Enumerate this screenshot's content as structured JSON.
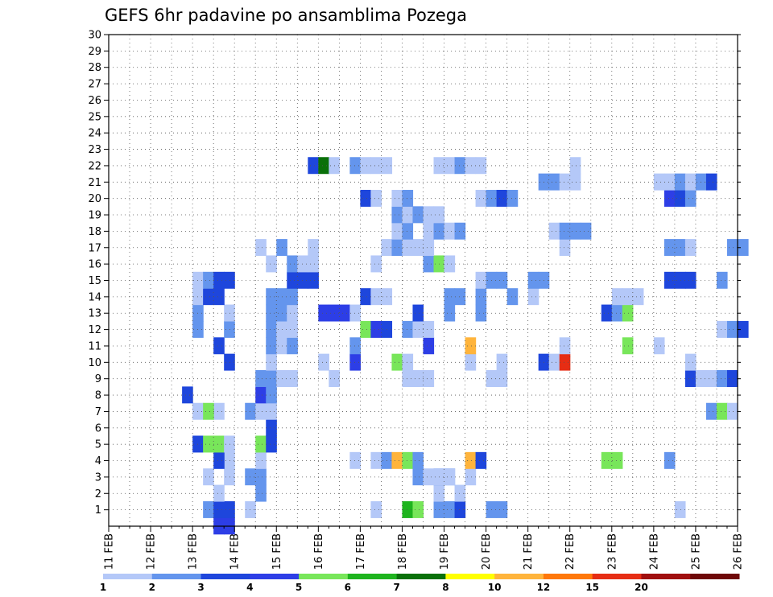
{
  "chart_data": {
    "type": "heatmap",
    "title": "GEFS 6hr padavine po ansamblima Pozega",
    "x_tick_labels": [
      "11 FEB",
      "12 FEB",
      "13 FEB",
      "14 FEB",
      "15 FEB",
      "16 FEB",
      "17 FEB",
      "18 FEB",
      "19 FEB",
      "20 FEB",
      "21 FEB",
      "22 FEB",
      "23 FEB",
      "24 FEB",
      "25 FEB",
      "26 FEB"
    ],
    "x_range": [
      0,
      60
    ],
    "y_tick_labels": [
      1,
      2,
      3,
      4,
      5,
      6,
      7,
      8,
      9,
      10,
      11,
      12,
      13,
      14,
      15,
      16,
      17,
      18,
      19,
      20,
      21,
      22,
      23,
      24,
      25,
      26,
      27,
      28,
      29,
      30
    ],
    "y_range": [
      0,
      30
    ],
    "grid": true,
    "legend_placement": "bottom",
    "legend_values": [
      "1",
      "2",
      "3",
      "4",
      "5",
      "6",
      "7",
      "8",
      "10",
      "12",
      "15",
      "20"
    ],
    "level_colors": [
      "#b4c8f8",
      "#6495ed",
      "#1e46dc",
      "#2d3ee6",
      "#78e65a",
      "#1eb41e",
      "#0a700a",
      "#ffff00",
      "#ffb43c",
      "#ff780a",
      "#e62d14",
      "#a00f0f",
      "#6e0808"
    ],
    "cell_note": "cells: [step, member, level]; step = 6-hour interval since 11 FEB 00Z",
    "cells": [
      [
        10,
        0,
        4
      ],
      [
        11,
        0,
        4
      ],
      [
        9,
        1,
        2
      ],
      [
        10,
        1,
        3
      ],
      [
        11,
        1,
        3
      ],
      [
        13,
        1,
        1
      ],
      [
        25,
        1,
        1
      ],
      [
        36,
        1,
        2
      ],
      [
        37,
        1,
        2
      ],
      [
        28,
        1,
        6
      ],
      [
        29,
        1,
        5
      ],
      [
        31,
        1,
        2
      ],
      [
        32,
        1,
        2
      ],
      [
        33,
        1,
        3
      ],
      [
        54,
        1,
        1
      ],
      [
        10,
        2,
        1
      ],
      [
        14,
        2,
        2
      ],
      [
        31,
        2,
        1
      ],
      [
        33,
        2,
        1
      ],
      [
        11,
        3,
        1
      ],
      [
        13,
        3,
        2
      ],
      [
        14,
        3,
        2
      ],
      [
        31,
        3,
        2
      ],
      [
        32,
        3,
        2
      ],
      [
        34,
        3,
        1
      ],
      [
        9,
        3,
        1
      ],
      [
        29,
        3,
        2
      ],
      [
        30,
        3,
        1
      ],
      [
        31,
        3,
        1
      ],
      [
        32,
        3,
        1
      ],
      [
        11,
        4,
        1
      ],
      [
        10,
        4,
        3
      ],
      [
        14,
        4,
        1
      ],
      [
        23,
        4,
        1
      ],
      [
        25,
        4,
        1
      ],
      [
        26,
        4,
        2
      ],
      [
        27,
        4,
        9
      ],
      [
        28,
        4,
        5
      ],
      [
        29,
        4,
        2
      ],
      [
        34,
        4,
        9
      ],
      [
        35,
        4,
        3
      ],
      [
        47,
        4,
        5
      ],
      [
        48,
        4,
        5
      ],
      [
        53,
        4,
        2
      ],
      [
        8,
        5,
        3
      ],
      [
        9,
        5,
        5
      ],
      [
        10,
        5,
        5
      ],
      [
        11,
        5,
        1
      ],
      [
        14,
        5,
        5
      ],
      [
        15,
        5,
        3
      ],
      [
        15,
        6,
        3
      ],
      [
        8,
        7,
        1
      ],
      [
        10,
        7,
        1
      ],
      [
        13,
        7,
        2
      ],
      [
        14,
        7,
        1
      ],
      [
        15,
        7,
        1
      ],
      [
        9,
        7,
        5
      ],
      [
        57,
        7,
        2
      ],
      [
        58,
        7,
        5
      ],
      [
        59,
        7,
        1
      ],
      [
        7,
        8,
        3
      ],
      [
        14,
        8,
        4
      ],
      [
        15,
        8,
        2
      ],
      [
        14,
        9,
        2
      ],
      [
        15,
        9,
        2
      ],
      [
        16,
        9,
        1
      ],
      [
        17,
        9,
        1
      ],
      [
        21,
        9,
        1
      ],
      [
        28,
        9,
        1
      ],
      [
        29,
        9,
        1
      ],
      [
        30,
        9,
        1
      ],
      [
        36,
        9,
        1
      ],
      [
        37,
        9,
        1
      ],
      [
        55,
        9,
        3
      ],
      [
        56,
        9,
        1
      ],
      [
        57,
        9,
        1
      ],
      [
        58,
        9,
        2
      ],
      [
        59,
        9,
        3
      ],
      [
        11,
        10,
        3
      ],
      [
        15,
        10,
        1
      ],
      [
        20,
        10,
        1
      ],
      [
        23,
        10,
        4
      ],
      [
        27,
        10,
        5
      ],
      [
        28,
        10,
        1
      ],
      [
        34,
        10,
        1
      ],
      [
        37,
        10,
        1
      ],
      [
        41,
        10,
        3
      ],
      [
        42,
        10,
        1
      ],
      [
        55,
        10,
        1
      ],
      [
        43,
        10,
        11
      ],
      [
        10,
        11,
        3
      ],
      [
        15,
        11,
        2
      ],
      [
        16,
        11,
        1
      ],
      [
        17,
        11,
        2
      ],
      [
        23,
        11,
        2
      ],
      [
        30,
        11,
        4
      ],
      [
        34,
        11,
        9
      ],
      [
        43,
        11,
        1
      ],
      [
        49,
        11,
        5
      ],
      [
        52,
        11,
        1
      ],
      [
        8,
        12,
        2
      ],
      [
        11,
        12,
        2
      ],
      [
        15,
        12,
        2
      ],
      [
        16,
        12,
        1
      ],
      [
        17,
        12,
        1
      ],
      [
        24,
        12,
        5
      ],
      [
        25,
        12,
        4
      ],
      [
        26,
        12,
        3
      ],
      [
        28,
        12,
        2
      ],
      [
        29,
        12,
        1
      ],
      [
        30,
        12,
        1
      ],
      [
        58,
        12,
        1
      ],
      [
        59,
        12,
        2
      ],
      [
        60,
        12,
        3
      ],
      [
        8,
        13,
        2
      ],
      [
        11,
        13,
        1
      ],
      [
        15,
        13,
        2
      ],
      [
        16,
        13,
        2
      ],
      [
        17,
        13,
        1
      ],
      [
        20,
        13,
        4
      ],
      [
        21,
        13,
        4
      ],
      [
        22,
        13,
        4
      ],
      [
        23,
        13,
        1
      ],
      [
        29,
        13,
        3
      ],
      [
        32,
        13,
        2
      ],
      [
        35,
        13,
        2
      ],
      [
        47,
        13,
        3
      ],
      [
        48,
        13,
        2
      ],
      [
        49,
        13,
        5
      ],
      [
        8,
        14,
        1
      ],
      [
        9,
        14,
        3
      ],
      [
        10,
        14,
        3
      ],
      [
        15,
        14,
        2
      ],
      [
        16,
        14,
        2
      ],
      [
        17,
        14,
        2
      ],
      [
        24,
        14,
        3
      ],
      [
        25,
        14,
        1
      ],
      [
        26,
        14,
        1
      ],
      [
        32,
        14,
        2
      ],
      [
        33,
        14,
        2
      ],
      [
        35,
        14,
        2
      ],
      [
        38,
        14,
        2
      ],
      [
        40,
        14,
        1
      ],
      [
        48,
        14,
        1
      ],
      [
        49,
        14,
        1
      ],
      [
        50,
        14,
        1
      ],
      [
        8,
        15,
        1
      ],
      [
        9,
        15,
        2
      ],
      [
        10,
        15,
        3
      ],
      [
        11,
        15,
        3
      ],
      [
        17,
        15,
        3
      ],
      [
        18,
        15,
        3
      ],
      [
        19,
        15,
        3
      ],
      [
        35,
        15,
        1
      ],
      [
        36,
        15,
        2
      ],
      [
        37,
        15,
        2
      ],
      [
        40,
        15,
        2
      ],
      [
        41,
        15,
        2
      ],
      [
        53,
        15,
        3
      ],
      [
        54,
        15,
        3
      ],
      [
        55,
        15,
        3
      ],
      [
        58,
        15,
        2
      ],
      [
        15,
        16,
        1
      ],
      [
        17,
        16,
        2
      ],
      [
        18,
        16,
        1
      ],
      [
        19,
        16,
        1
      ],
      [
        25,
        16,
        1
      ],
      [
        30,
        16,
        2
      ],
      [
        31,
        16,
        5
      ],
      [
        32,
        16,
        1
      ],
      [
        14,
        17,
        1
      ],
      [
        16,
        17,
        2
      ],
      [
        19,
        17,
        1
      ],
      [
        26,
        17,
        1
      ],
      [
        27,
        17,
        2
      ],
      [
        28,
        17,
        1
      ],
      [
        29,
        17,
        1
      ],
      [
        30,
        17,
        1
      ],
      [
        43,
        17,
        1
      ],
      [
        53,
        17,
        2
      ],
      [
        54,
        17,
        2
      ],
      [
        55,
        17,
        1
      ],
      [
        59,
        17,
        2
      ],
      [
        60,
        17,
        2
      ],
      [
        27,
        18,
        1
      ],
      [
        28,
        18,
        2
      ],
      [
        30,
        18,
        1
      ],
      [
        31,
        18,
        2
      ],
      [
        32,
        18,
        1
      ],
      [
        33,
        18,
        2
      ],
      [
        42,
        18,
        1
      ],
      [
        43,
        18,
        2
      ],
      [
        44,
        18,
        2
      ],
      [
        45,
        18,
        2
      ],
      [
        27,
        19,
        2
      ],
      [
        28,
        19,
        1
      ],
      [
        29,
        19,
        2
      ],
      [
        30,
        19,
        1
      ],
      [
        31,
        19,
        1
      ],
      [
        24,
        20,
        3
      ],
      [
        25,
        20,
        1
      ],
      [
        27,
        20,
        1
      ],
      [
        28,
        20,
        2
      ],
      [
        35,
        20,
        1
      ],
      [
        36,
        20,
        2
      ],
      [
        37,
        20,
        3
      ],
      [
        38,
        20,
        2
      ],
      [
        53,
        20,
        4
      ],
      [
        54,
        20,
        3
      ],
      [
        55,
        20,
        2
      ],
      [
        41,
        21,
        2
      ],
      [
        42,
        21,
        2
      ],
      [
        43,
        21,
        1
      ],
      [
        44,
        21,
        1
      ],
      [
        52,
        21,
        1
      ],
      [
        53,
        21,
        1
      ],
      [
        54,
        21,
        2
      ],
      [
        55,
        21,
        1
      ],
      [
        56,
        21,
        2
      ],
      [
        57,
        21,
        3
      ],
      [
        19,
        22,
        3
      ],
      [
        20,
        22,
        7
      ],
      [
        21,
        22,
        1
      ],
      [
        23,
        22,
        2
      ],
      [
        24,
        22,
        1
      ],
      [
        25,
        22,
        1
      ],
      [
        26,
        22,
        1
      ],
      [
        31,
        22,
        1
      ],
      [
        32,
        22,
        1
      ],
      [
        33,
        22,
        2
      ],
      [
        34,
        22,
        1
      ],
      [
        35,
        22,
        1
      ],
      [
        44,
        22,
        1
      ]
    ]
  }
}
